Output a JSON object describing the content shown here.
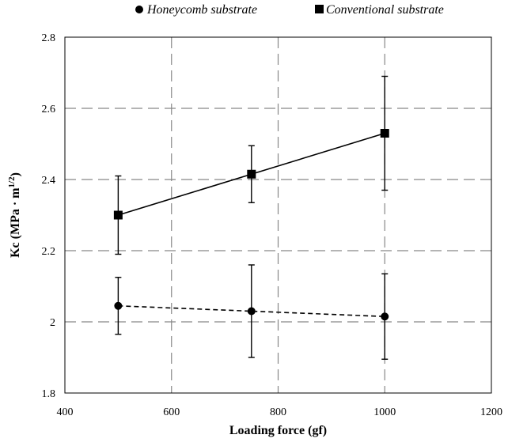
{
  "chart_data": {
    "type": "line",
    "title": "",
    "xlabel": "Loading force  (gf)",
    "ylabel": "Kc (MPa · m",
    "ylabel_superscript": "1/2",
    "ylabel_close": ")",
    "xlim": [
      400,
      1200
    ],
    "ylim": [
      1.8,
      2.8
    ],
    "x_ticks": [
      400,
      600,
      800,
      1000,
      1200
    ],
    "y_ticks": [
      1.8,
      2.0,
      2.2,
      2.4,
      2.6,
      2.8
    ],
    "y_tick_labels": [
      "1.8",
      "2",
      "2.2",
      "2.4",
      "2.6",
      "2.8"
    ],
    "grid": true,
    "legend_position": "top",
    "series": [
      {
        "name": "Honeycomb substrate",
        "marker": "circle",
        "line_style": "dashed",
        "color": "#000000",
        "x": [
          500,
          750,
          1000
        ],
        "y": [
          2.045,
          2.03,
          2.015
        ],
        "error": [
          0.08,
          0.13,
          0.12
        ]
      },
      {
        "name": "Conventional substrate",
        "marker": "square",
        "line_style": "solid",
        "color": "#000000",
        "x": [
          500,
          750,
          1000
        ],
        "y": [
          2.3,
          2.415,
          2.53
        ],
        "error": [
          0.11,
          0.08,
          0.16
        ]
      }
    ]
  }
}
